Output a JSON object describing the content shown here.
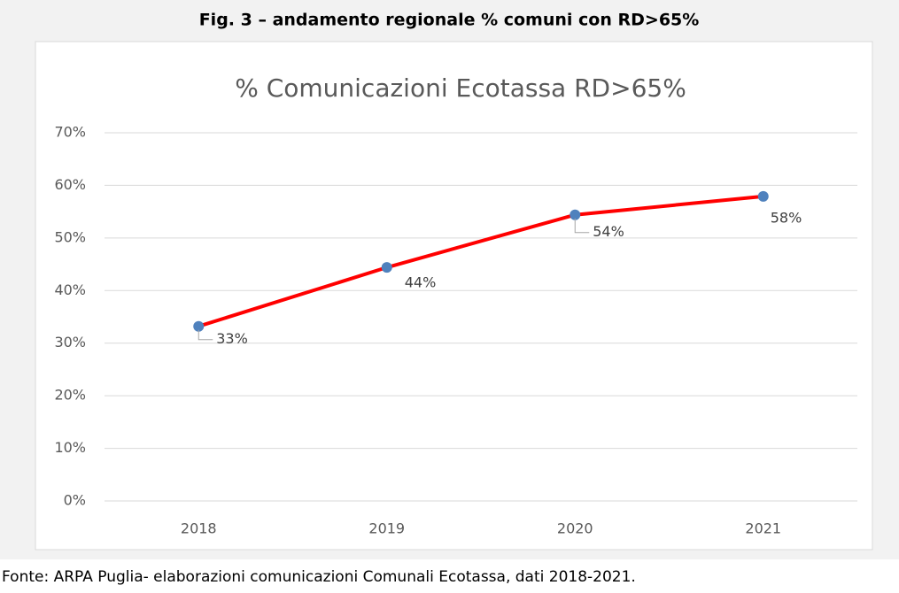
{
  "caption": "Fig. 3 – andamento regionale % comuni con RD>65%",
  "source": "Fonte: ARPA Puglia- elaborazioni comunicazioni Comunali Ecotassa, dati 2018-2021.",
  "chart_data": {
    "type": "line",
    "title": "% Comunicazioni Ecotassa RD>65%",
    "categories": [
      "2018",
      "2019",
      "2020",
      "2021"
    ],
    "series": [
      {
        "name": "% Comunicazioni Ecotassa RD>65%",
        "color": "#ff0000",
        "marker_color": "#4f81bd",
        "values": [
          33.2,
          44.4,
          54.4,
          57.9
        ],
        "value_labels": [
          "33%",
          "44%",
          "54%",
          "58%"
        ]
      }
    ],
    "ylim": [
      0,
      70
    ],
    "yticks": [
      {
        "value": 0,
        "label": "0%"
      },
      {
        "value": 10,
        "label": "10%"
      },
      {
        "value": 20,
        "label": "20%"
      },
      {
        "value": 30,
        "label": "30%"
      },
      {
        "value": 40,
        "label": "40%"
      },
      {
        "value": 50,
        "label": "50%"
      },
      {
        "value": 60,
        "label": "60%"
      },
      {
        "value": 70,
        "label": "70%"
      }
    ],
    "grid": true
  }
}
